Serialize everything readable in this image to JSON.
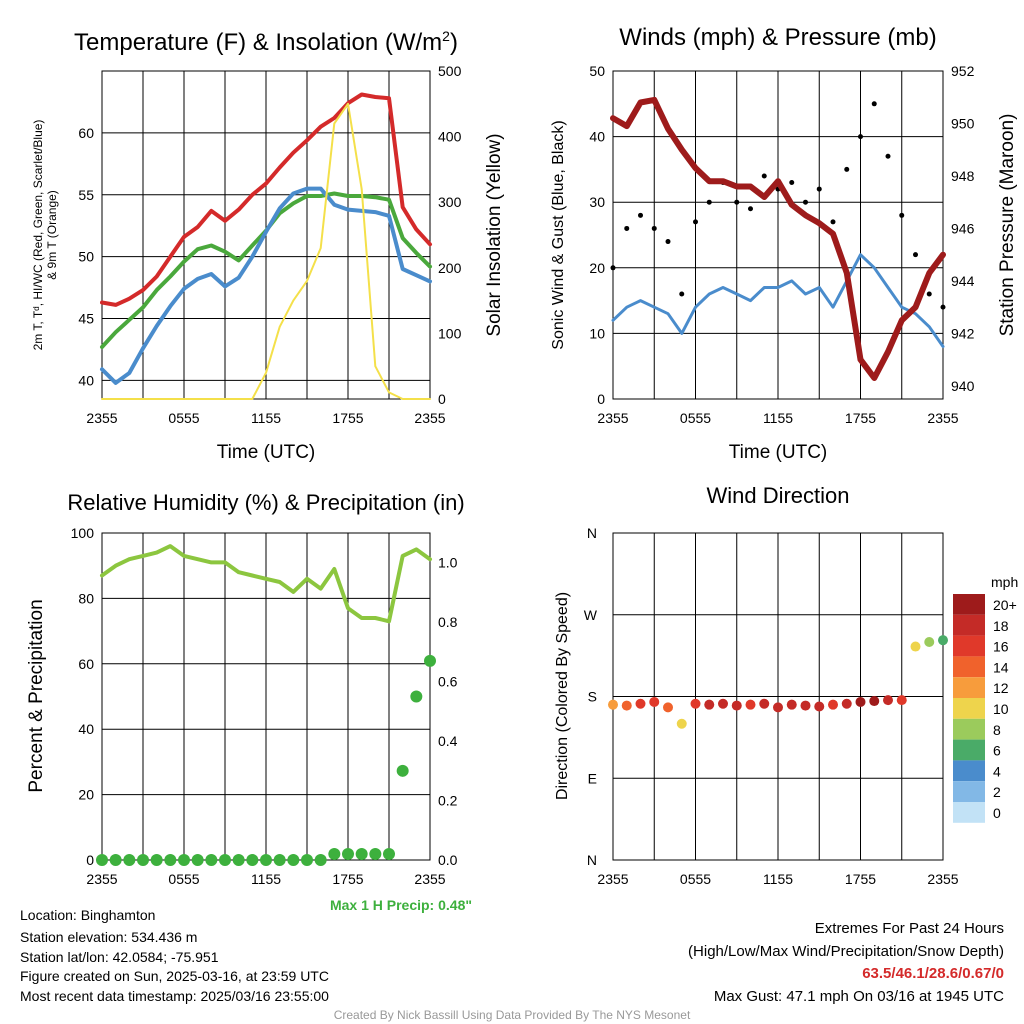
{
  "chart_data": [
    {
      "type": "line",
      "title": "Temperature (F) & Insolation (W/m²)",
      "title_main": "Temperature (F) & Insolation (W/m",
      "title_sup": "2",
      "title_end": ")",
      "xlabel": "Time (UTC)",
      "ylabel_left_1": "2m T, Tᵈ, HI/WC (Red, Green, Scarlet/Blue)",
      "ylabel_left_2": "& 9m T (Orange)",
      "ylabel_right": "Solar Insolation (Yellow)",
      "x_ticks": [
        "2355",
        "0555",
        "1155",
        "1755",
        "2355"
      ],
      "ylim_left": [
        38.5,
        65
      ],
      "ylim_right": [
        0,
        500
      ],
      "y_ticks_left": [
        40,
        45,
        50,
        55,
        60
      ],
      "y_ticks_right": [
        0,
        100,
        200,
        300,
        400,
        500
      ],
      "x_hours": [
        0,
        1,
        2,
        3,
        4,
        5,
        6,
        7,
        8,
        9,
        10,
        11,
        12,
        13,
        14,
        15,
        16,
        17,
        18,
        19,
        20,
        21,
        22,
        23,
        24
      ],
      "series": [
        {
          "name": "2m T",
          "color": "#d42a2a",
          "axis": "left",
          "values": [
            46.3,
            46.1,
            46.6,
            47.3,
            48.4,
            50.0,
            51.6,
            52.4,
            53.7,
            52.9,
            53.8,
            55.0,
            55.9,
            57.2,
            58.4,
            59.4,
            60.5,
            61.2,
            62.4,
            63.1,
            62.9,
            62.8,
            54.0,
            52.2,
            51.0
          ]
        },
        {
          "name": "Td",
          "color": "#4aa83c",
          "axis": "left",
          "values": [
            42.7,
            43.9,
            44.9,
            45.9,
            47.3,
            48.4,
            49.6,
            50.6,
            50.9,
            50.4,
            49.7,
            50.9,
            52.1,
            53.5,
            54.3,
            54.9,
            54.9,
            55.1,
            54.9,
            54.9,
            54.8,
            54.6,
            51.5,
            50.3,
            49.2
          ]
        },
        {
          "name": "HI/WC",
          "color": "#4a8ccc",
          "axis": "left",
          "values": [
            40.9,
            39.8,
            40.6,
            42.6,
            44.4,
            46.0,
            47.4,
            48.2,
            48.6,
            47.6,
            48.3,
            50.0,
            52.0,
            53.9,
            55.1,
            55.5,
            55.5,
            54.2,
            53.8,
            53.7,
            53.6,
            53.3,
            49.0,
            48.5,
            48.0
          ]
        },
        {
          "name": "Solar Insolation",
          "color": "#f4e04a",
          "axis": "right",
          "values": [
            0,
            0,
            0,
            0,
            0,
            0,
            0,
            0,
            0,
            0,
            0,
            0,
            40,
            110,
            150,
            180,
            230,
            420,
            450,
            320,
            50,
            10,
            0,
            0,
            0
          ]
        }
      ]
    },
    {
      "type": "line",
      "title": "Winds (mph) & Pressure (mb)",
      "xlabel": "Time (UTC)",
      "ylabel_left": "Sonic Wind & Gust (Blue, Black)",
      "ylabel_right": "Station Pressure (Maroon)",
      "x_ticks": [
        "2355",
        "0555",
        "1155",
        "1755",
        "2355"
      ],
      "ylim_left": [
        0,
        50
      ],
      "ylim_right": [
        939.5,
        952
      ],
      "y_ticks_left": [
        0,
        10,
        20,
        30,
        40,
        50
      ],
      "y_ticks_right": [
        940,
        942,
        944,
        946,
        948,
        950,
        952
      ],
      "x_hours": [
        0,
        1,
        2,
        3,
        4,
        5,
        6,
        7,
        8,
        9,
        10,
        11,
        12,
        13,
        14,
        15,
        16,
        17,
        18,
        19,
        20,
        21,
        22,
        23,
        24
      ],
      "series": [
        {
          "name": "Sonic Wind",
          "color": "#4a8ccc",
          "axis": "left",
          "values": [
            12,
            14,
            15,
            14,
            13,
            10,
            14,
            16,
            17,
            16,
            15,
            17,
            17,
            18,
            16,
            17,
            14,
            18,
            22,
            20,
            17,
            14,
            13,
            11,
            8
          ]
        },
        {
          "name": "Gust",
          "color": "#000000",
          "axis": "left",
          "type": "scatter",
          "values": [
            20,
            26,
            28,
            26,
            24,
            16,
            27,
            30,
            33,
            30,
            29,
            34,
            32,
            33,
            30,
            32,
            27,
            35,
            40,
            45,
            37,
            28,
            22,
            16,
            14
          ]
        },
        {
          "name": "Station Pressure",
          "color": "#9e1b1b",
          "axis": "right",
          "values": [
            950.2,
            949.9,
            950.8,
            950.9,
            949.8,
            949.0,
            948.3,
            947.8,
            947.8,
            947.6,
            947.6,
            947.2,
            947.8,
            946.9,
            946.5,
            946.2,
            945.8,
            944.3,
            941.0,
            940.3,
            941.3,
            942.5,
            943.0,
            944.3,
            945.0
          ]
        }
      ]
    },
    {
      "type": "line",
      "title": "Relative Humidity (%) & Precipitation (in)",
      "ylabel_left": "Percent & Precipitation",
      "x_ticks": [
        "2355",
        "0555",
        "1155",
        "1755",
        "2355"
      ],
      "ylim_left": [
        0,
        100
      ],
      "ylim_right": [
        0,
        1.1
      ],
      "y_ticks_left": [
        0,
        20,
        40,
        60,
        80,
        100
      ],
      "y_ticks_right": [
        "0.0",
        "0.2",
        "0.4",
        "0.6",
        "0.8",
        "1.0"
      ],
      "x_hours": [
        0,
        1,
        2,
        3,
        4,
        5,
        6,
        7,
        8,
        9,
        10,
        11,
        12,
        13,
        14,
        15,
        16,
        17,
        18,
        19,
        20,
        21,
        22,
        23,
        24
      ],
      "series": [
        {
          "name": "Relative Humidity",
          "color": "#8cc63f",
          "axis": "left",
          "values": [
            87,
            90,
            92,
            93,
            94,
            96,
            93,
            92,
            91,
            91,
            88,
            87,
            86,
            85,
            82,
            86,
            83,
            89,
            77,
            74,
            74,
            73,
            93,
            95,
            92
          ]
        },
        {
          "name": "Precipitation",
          "color": "#3db03d",
          "axis": "right",
          "type": "scatter",
          "values": [
            0,
            0,
            0,
            0,
            0,
            0,
            0,
            0,
            0,
            0,
            0,
            0,
            0,
            0,
            0,
            0,
            0,
            0.02,
            0.02,
            0.02,
            0.02,
            0.02,
            0.3,
            0.55,
            0.67
          ]
        }
      ],
      "annotation": "Max 1 H Precip: 0.48\""
    },
    {
      "type": "scatter",
      "title": "Wind Direction",
      "ylabel_left": "Direction (Colored By Speed)",
      "x_ticks": [
        "2355",
        "0555",
        "1155",
        "1755",
        "2355"
      ],
      "y_ticks": [
        "N",
        "E",
        "S",
        "W",
        "N"
      ],
      "ylim": [
        0,
        360
      ],
      "x_hours": [
        0,
        1,
        2,
        3,
        4,
        5,
        6,
        7,
        8,
        9,
        10,
        11,
        12,
        13,
        14,
        15,
        16,
        17,
        18,
        19,
        20,
        21,
        22,
        23,
        24
      ],
      "direction_values": [
        171,
        170,
        172,
        174,
        168,
        150,
        172,
        171,
        172,
        170,
        171,
        172,
        168,
        171,
        170,
        169,
        171,
        172,
        174,
        175,
        176,
        176,
        235,
        240,
        242
      ],
      "speed_values": [
        13,
        15,
        16,
        17,
        15,
        10,
        17,
        18,
        19,
        18,
        17,
        19,
        18,
        19,
        18,
        19,
        17,
        19,
        21,
        21,
        19,
        16,
        10,
        8,
        7
      ],
      "legend": {
        "title": "mph",
        "labels": [
          "20+",
          "18",
          "16",
          "14",
          "12",
          "10",
          "8",
          "6",
          "4",
          "2",
          "0"
        ],
        "colors": [
          "#9e1b1b",
          "#c42b27",
          "#e0392a",
          "#f0622c",
          "#f79c3c",
          "#eed44c",
          "#9bcb5c",
          "#4aab68",
          "#4a8ccc",
          "#82b8e6",
          "#c2e2f6"
        ]
      }
    }
  ],
  "footer": {
    "location": "Location: Binghamton",
    "elevation": "Station elevation: 534.436 m",
    "latlon": "Station lat/lon: 42.0584; -75.951",
    "created": "Figure created on Sun, 2025-03-16, at 23:59 UTC",
    "recent": "Most recent data timestamp: 2025/03/16 23:55:00",
    "extremes_title": "Extremes For Past 24 Hours",
    "extremes_sub": "(High/Low/Max Wind/Precipitation/Snow Depth)",
    "extremes_values": "63.5/46.1/28.6/0.67/0",
    "extremes_color": "#d42a2a",
    "max_gust": "Max Gust: 47.1 mph On 03/16 at 1945 UTC",
    "credit": "Created By Nick Bassill Using Data Provided By The NYS Mesonet"
  }
}
